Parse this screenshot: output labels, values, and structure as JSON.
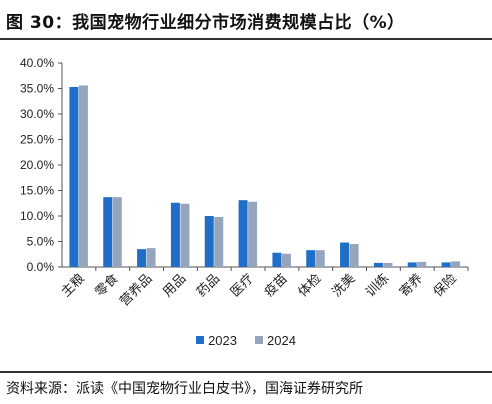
{
  "title": "图 30：我国宠物行业细分市场消费规模占比（%）",
  "source": "资料来源：派读《中国宠物行业白皮书》，国海证券研究所",
  "colors": {
    "s2023": "#1F6FC9",
    "s2024": "#94A5BD"
  },
  "chart_data": {
    "type": "bar",
    "title": "我国宠物行业细分市场消费规模占比（%）",
    "categories": [
      "主粮",
      "零食",
      "营养品",
      "用品",
      "药品",
      "医疗",
      "疫苗",
      "体检",
      "洗美",
      "训练",
      "寄养",
      "保险"
    ],
    "series": [
      {
        "name": "2023",
        "values": [
          35.3,
          13.7,
          3.5,
          12.6,
          10.0,
          13.1,
          2.8,
          3.3,
          4.8,
          0.8,
          0.9,
          0.9
        ]
      },
      {
        "name": "2024",
        "values": [
          35.6,
          13.7,
          3.7,
          12.4,
          9.8,
          12.8,
          2.6,
          3.3,
          4.5,
          0.8,
          1.0,
          1.1
        ]
      }
    ],
    "yticks": [
      "0.0%",
      "5.0%",
      "10.0%",
      "15.0%",
      "20.0%",
      "25.0%",
      "30.0%",
      "35.0%",
      "40.0%"
    ],
    "ylim": [
      0,
      40
    ],
    "grid": false,
    "legend": "bottom"
  }
}
